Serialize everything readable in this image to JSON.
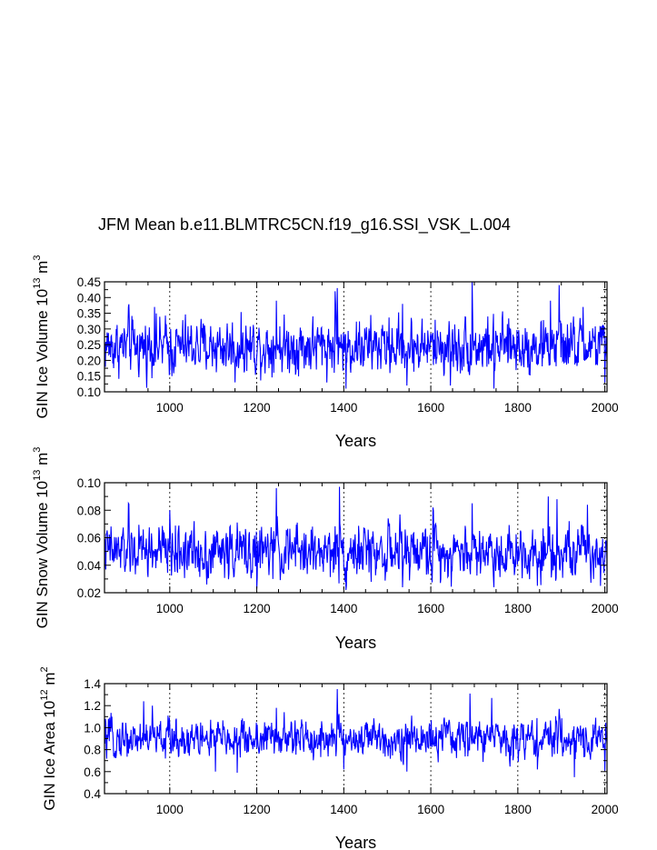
{
  "title": "JFM Mean b.e11.BLMTRC5CN.f19_g16.SSI_VSK_L.004",
  "colors": {
    "series": "#0000ff",
    "axis": "#000000",
    "background": "#ffffff"
  },
  "chart_data": [
    {
      "type": "line",
      "ylabel": "GIN Ice Volume 10",
      "ylabel_exp": "13",
      "ylabel_unit": "m",
      "ylabel_unit_exp": "3",
      "xlabel": "Years",
      "xlim": [
        850,
        2005
      ],
      "ylim": [
        0.1,
        0.45
      ],
      "xticks": [
        1000,
        1200,
        1400,
        1600,
        1800,
        2000
      ],
      "xtick_labels": [
        "1000",
        "1200",
        "1400",
        "1600",
        "1800",
        "2000"
      ],
      "yticks": [
        0.1,
        0.15,
        0.2,
        0.25,
        0.3,
        0.35,
        0.4,
        0.45
      ],
      "ytick_labels": [
        "0.10",
        "0.15",
        "0.20",
        "0.25",
        "0.30",
        "0.35",
        "0.40",
        "0.45"
      ],
      "ygrid_minor": 0.025,
      "grid_x": [
        1000,
        1200,
        1400,
        1600,
        1800,
        2000
      ],
      "series": [
        {
          "name": "GIN Ice Volume",
          "x_start": 850,
          "x_end": 2005,
          "mean": 0.245,
          "amplitude": 0.05,
          "min": 0.11,
          "max": 0.45,
          "peaks": [
            [
              905,
              0.37
            ],
            [
              965,
              0.37
            ],
            [
              1245,
              0.39
            ],
            [
              1380,
              0.42
            ],
            [
              1385,
              0.43
            ],
            [
              1535,
              0.38
            ],
            [
              1695,
              0.45
            ],
            [
              1875,
              0.39
            ],
            [
              1895,
              0.44
            ],
            [
              1950,
              0.37
            ]
          ],
          "troughs": [
            [
              1005,
              0.15
            ],
            [
              1150,
              0.13
            ],
            [
              1405,
              0.11
            ],
            [
              1545,
              0.12
            ],
            [
              1645,
              0.12
            ],
            [
              1745,
              0.11
            ],
            [
              2000,
              0.13
            ]
          ]
        }
      ]
    },
    {
      "type": "line",
      "ylabel": "GIN Snow Volume 10",
      "ylabel_exp": "13",
      "ylabel_unit": "m",
      "ylabel_unit_exp": "3",
      "xlabel": "Years",
      "xlim": [
        850,
        2005
      ],
      "ylim": [
        0.02,
        0.1
      ],
      "xticks": [
        1000,
        1200,
        1400,
        1600,
        1800,
        2000
      ],
      "xtick_labels": [
        "1000",
        "1200",
        "1400",
        "1600",
        "1800",
        "2000"
      ],
      "yticks": [
        0.02,
        0.04,
        0.06,
        0.08,
        0.1
      ],
      "ytick_labels": [
        "0.02",
        "0.04",
        "0.06",
        "0.08",
        "0.10"
      ],
      "ygrid_minor": 0.01,
      "grid_x": [
        1000,
        1200,
        1400,
        1600,
        1800,
        2000
      ],
      "series": [
        {
          "name": "GIN Snow Volume",
          "x_start": 850,
          "x_end": 2005,
          "mean": 0.05,
          "amplitude": 0.011,
          "min": 0.022,
          "max": 0.097,
          "peaks": [
            [
              905,
              0.085
            ],
            [
              1000,
              0.08
            ],
            [
              1245,
              0.096
            ],
            [
              1390,
              0.097
            ],
            [
              1605,
              0.082
            ],
            [
              1695,
              0.085
            ],
            [
              1870,
              0.09
            ],
            [
              1890,
              0.088
            ],
            [
              1960,
              0.084
            ]
          ],
          "troughs": [
            [
              1085,
              0.026
            ],
            [
              1200,
              0.023
            ],
            [
              1405,
              0.022
            ],
            [
              1535,
              0.024
            ],
            [
              1745,
              0.024
            ],
            [
              1990,
              0.025
            ]
          ]
        }
      ]
    },
    {
      "type": "line",
      "ylabel": "GIN Ice Area 10",
      "ylabel_exp": "12",
      "ylabel_unit": "m",
      "ylabel_unit_exp": "2",
      "xlabel": "Years",
      "xlim": [
        850,
        2005
      ],
      "ylim": [
        0.4,
        1.4
      ],
      "xticks": [
        1000,
        1200,
        1400,
        1600,
        1800,
        2000
      ],
      "xtick_labels": [
        "1000",
        "1200",
        "1400",
        "1600",
        "1800",
        "2000"
      ],
      "yticks": [
        0.4,
        0.6,
        0.8,
        1.0,
        1.2,
        1.4
      ],
      "ytick_labels": [
        "0.4",
        "0.6",
        "0.8",
        "1.0",
        "1.2",
        "1.4"
      ],
      "ygrid_minor": 0.1,
      "grid_x": [
        1000,
        1200,
        1400,
        1600,
        1800,
        2000
      ],
      "series": [
        {
          "name": "GIN Ice Area",
          "x_start": 850,
          "x_end": 2005,
          "mean": 0.9,
          "amplitude": 0.1,
          "min": 0.55,
          "max": 1.35,
          "peaks": [
            [
              940,
              1.24
            ],
            [
              960,
              1.2
            ],
            [
              1245,
              1.18
            ],
            [
              1385,
              1.35
            ],
            [
              1690,
              1.31
            ],
            [
              1740,
              1.27
            ],
            [
              1895,
              1.17
            ]
          ],
          "troughs": [
            [
              1105,
              0.6
            ],
            [
              1155,
              0.59
            ],
            [
              1400,
              0.62
            ],
            [
              1545,
              0.6
            ],
            [
              1845,
              0.62
            ],
            [
              1930,
              0.55
            ],
            [
              2000,
              0.61
            ]
          ]
        }
      ]
    }
  ]
}
